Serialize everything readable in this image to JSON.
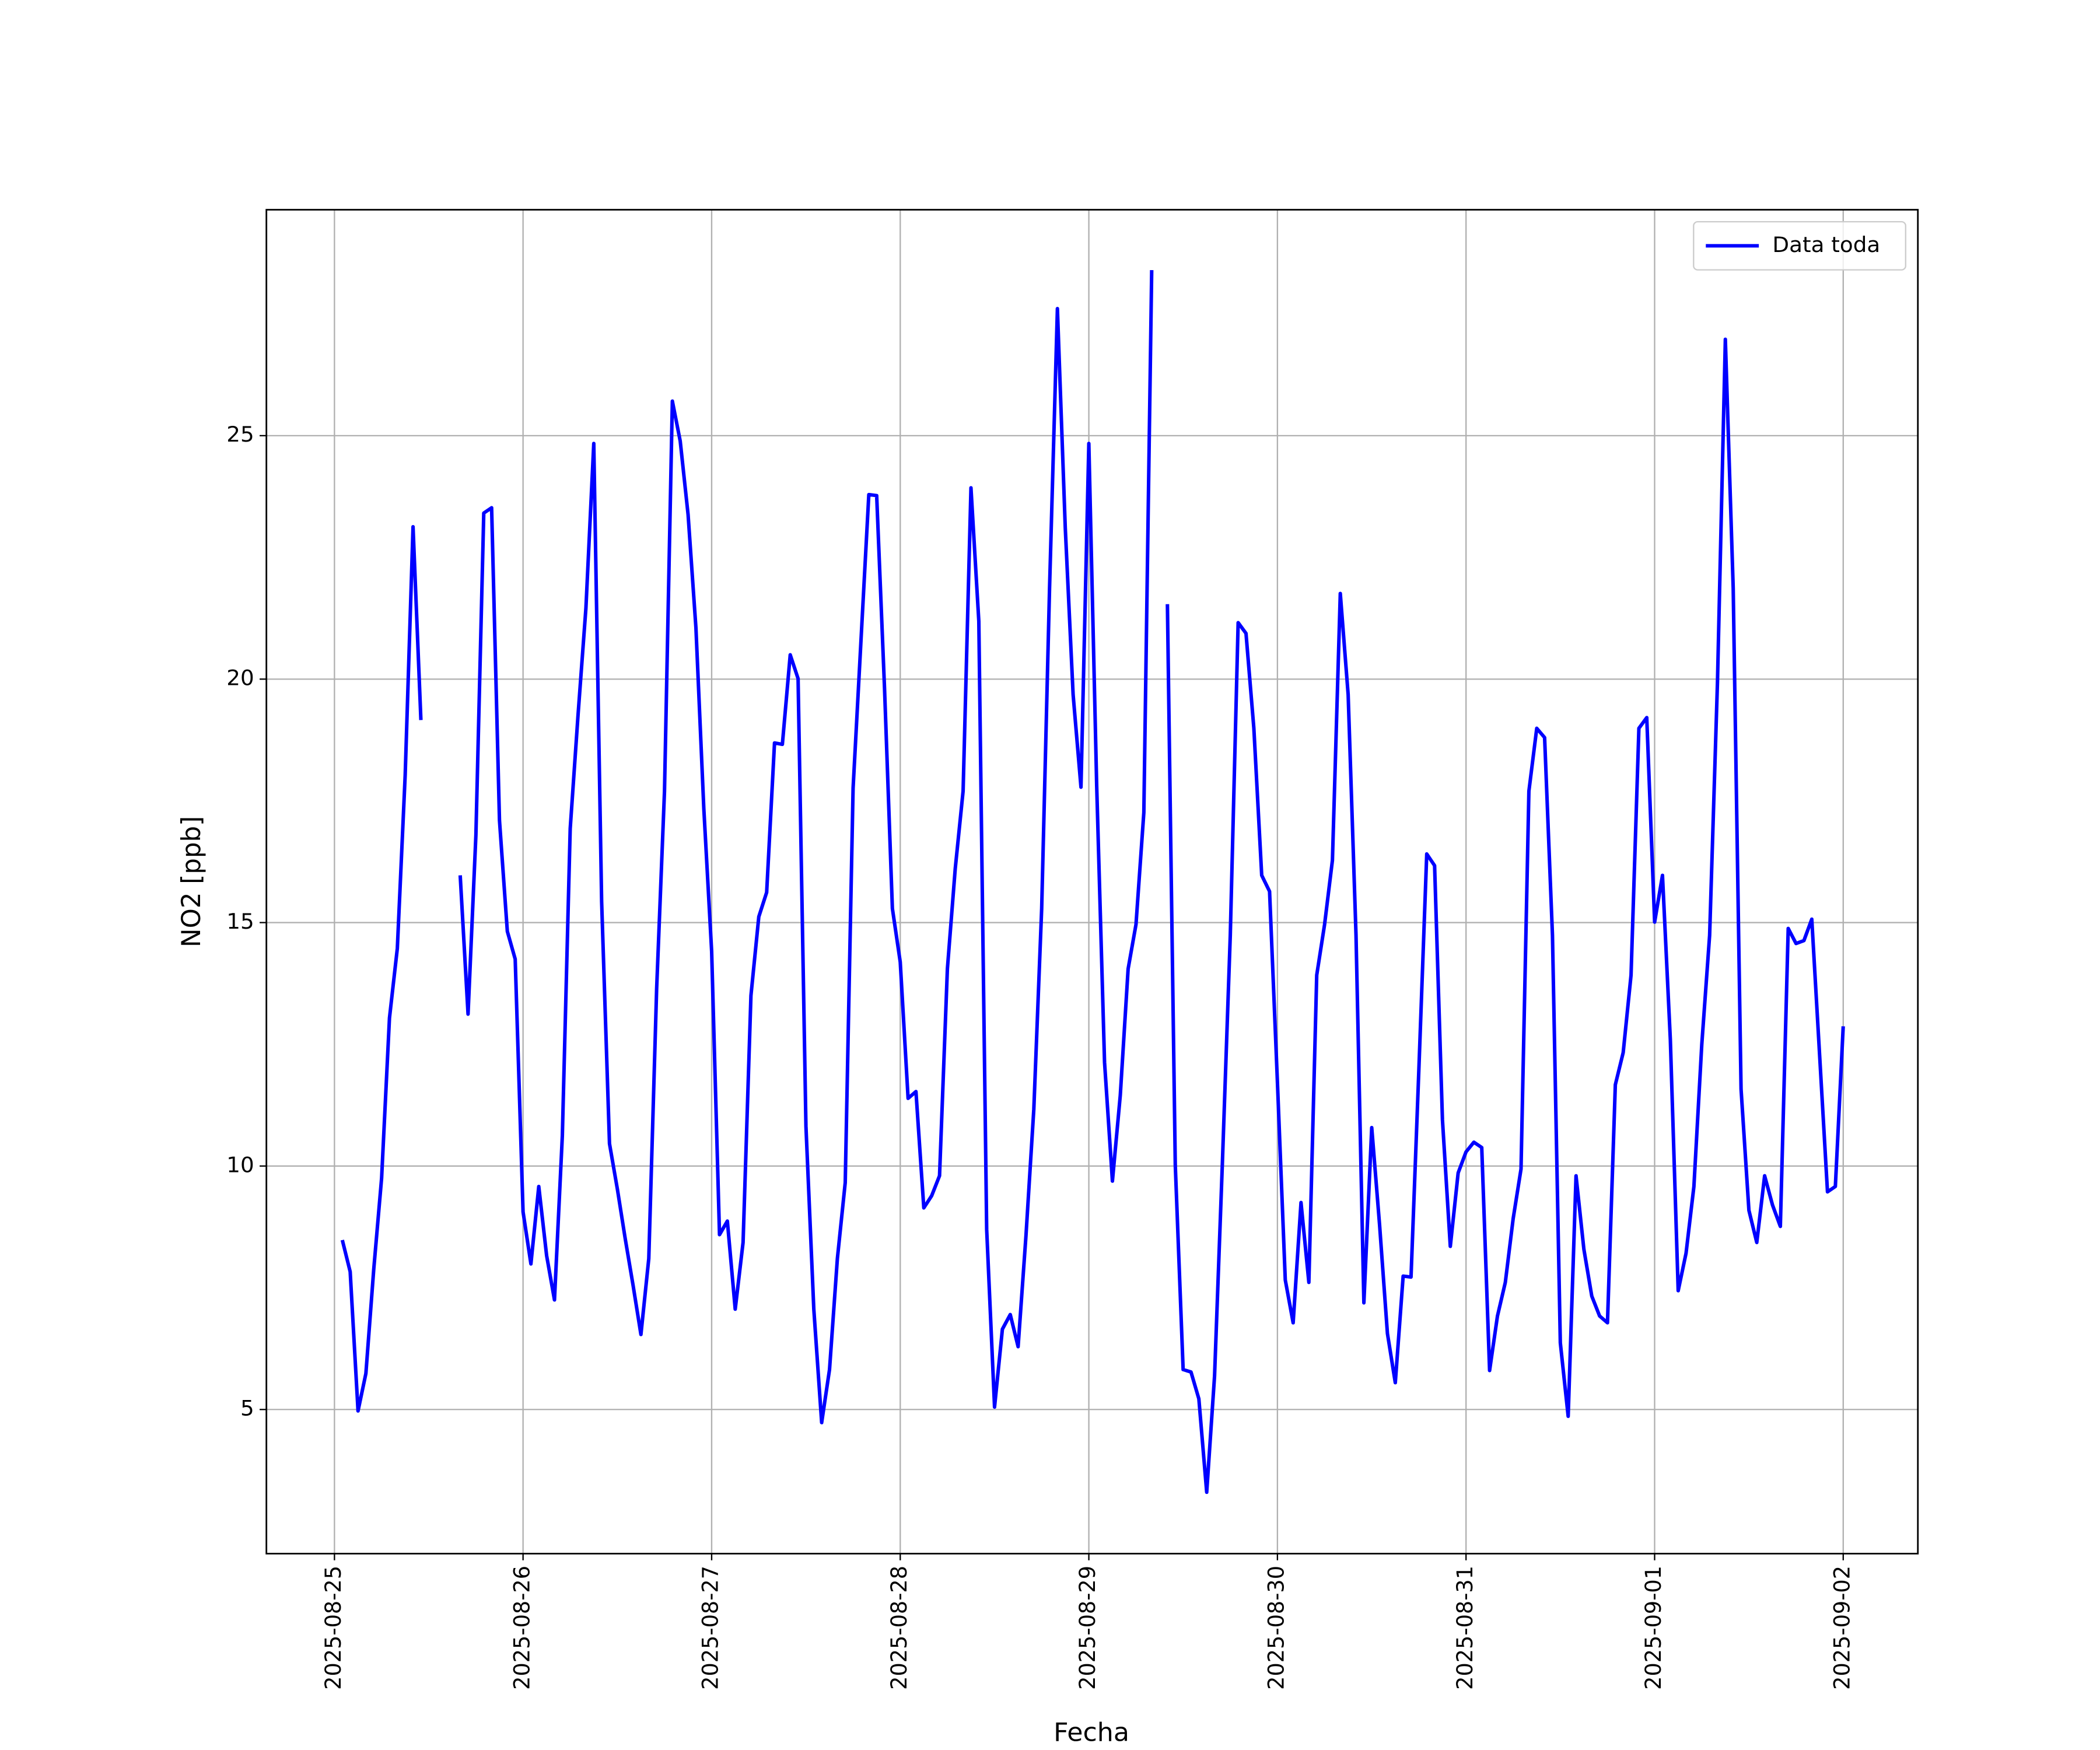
{
  "chart_data": {
    "type": "line",
    "xlabel": "Fecha",
    "ylabel": "NO2 [ppb]",
    "categories": [
      "2025-08-25",
      null,
      null,
      null,
      null,
      null,
      null,
      null,
      null,
      null,
      null,
      null,
      null,
      null,
      null,
      null,
      null,
      null,
      null,
      null,
      null,
      null,
      null,
      null,
      "2025-08-26",
      null,
      null,
      null,
      null,
      null,
      null,
      null,
      null,
      null,
      null,
      null,
      null,
      null,
      null,
      null,
      null,
      null,
      null,
      null,
      null,
      null,
      null,
      null,
      "2025-08-27",
      null,
      null,
      null,
      null,
      null,
      null,
      null,
      null,
      null,
      null,
      null,
      null,
      null,
      null,
      null,
      null,
      null,
      null,
      null,
      null,
      null,
      null,
      null,
      "2025-08-28",
      null,
      null,
      null,
      null,
      null,
      null,
      null,
      null,
      null,
      null,
      null,
      null,
      null,
      null,
      null,
      null,
      null,
      null,
      null,
      null,
      null,
      null,
      null,
      "2025-08-29",
      null,
      null,
      null,
      null,
      null,
      null,
      null,
      null,
      null,
      null,
      null,
      null,
      null,
      null,
      null,
      null,
      null,
      null,
      null,
      null,
      null,
      null,
      null,
      "2025-08-30",
      null,
      null,
      null,
      null,
      null,
      null,
      null,
      null,
      null,
      null,
      null,
      null,
      null,
      null,
      null,
      null,
      null,
      null,
      null,
      null,
      null,
      null,
      null,
      "2025-08-31",
      null,
      null,
      null,
      null,
      null,
      null,
      null,
      null,
      null,
      null,
      null,
      null,
      null,
      null,
      null,
      null,
      null,
      null,
      null,
      null,
      null,
      null,
      null,
      "2025-09-01",
      null,
      null,
      null,
      null,
      null,
      null,
      null,
      null,
      null,
      null,
      null,
      null,
      null,
      null,
      null,
      null,
      null,
      null,
      null,
      null,
      null,
      null,
      null,
      "2025-09-02"
    ],
    "series": [
      {
        "name": "Data toda",
        "color": "#0000ff",
        "values": [
          null,
          8.48,
          7.83,
          4.97,
          5.74,
          7.88,
          9.75,
          13.04,
          14.47,
          18.03,
          23.13,
          19.16,
          null,
          null,
          null,
          null,
          15.97,
          13.12,
          16.8,
          23.41,
          23.52,
          17.1,
          14.82,
          14.25,
          9.06,
          7.99,
          9.58,
          8.16,
          7.25,
          10.62,
          16.93,
          19.27,
          21.46,
          24.84,
          15.43,
          10.46,
          9.53,
          8.51,
          7.55,
          6.54,
          8.1,
          13.64,
          17.7,
          25.71,
          24.89,
          23.38,
          21.05,
          17.35,
          14.41,
          8.59,
          8.87,
          7.06,
          8.43,
          13.5,
          15.12,
          15.62,
          18.69,
          18.66,
          20.5,
          20.01,
          10.82,
          7.06,
          4.73,
          5.82,
          8.1,
          9.66,
          17.76,
          20.78,
          23.79,
          23.77,
          19.81,
          15.29,
          14.19,
          11.39,
          11.53,
          9.14,
          9.39,
          9.8,
          14.05,
          16.11,
          17.7,
          23.93,
          21.19,
          8.7,
          5.05,
          6.65,
          6.95,
          6.29,
          8.57,
          11.17,
          15.29,
          21.87,
          27.61,
          23.11,
          19.68,
          17.78,
          24.84,
          17.81,
          12.13,
          9.69,
          11.45,
          14.05,
          14.96,
          17.26,
          28.4,
          null,
          21.54,
          10.02,
          5.82,
          5.77,
          5.22,
          3.3,
          5.69,
          10.08,
          14.74,
          21.16,
          20.94,
          18.99,
          15.97,
          15.64,
          11.72,
          7.66,
          6.78,
          9.25,
          7.61,
          13.92,
          14.96,
          16.28,
          21.76,
          19.68,
          14.74,
          7.19,
          10.79,
          8.79,
          6.56,
          5.55,
          7.74,
          7.72,
          11.99,
          16.41,
          16.17,
          10.95,
          8.35,
          9.86,
          10.29,
          10.49,
          10.38,
          5.8,
          6.92,
          7.61,
          8.92,
          9.94,
          17.7,
          18.99,
          18.8,
          14.74,
          6.37,
          4.86,
          9.8,
          8.29,
          7.33,
          6.92,
          6.78,
          11.67,
          12.33,
          13.92,
          18.99,
          19.21,
          15.01,
          15.97,
          12.6,
          7.44,
          8.21,
          9.58,
          12.49,
          14.74,
          19.95,
          26.98,
          21.87,
          11.58,
          9.09,
          8.43,
          9.8,
          9.2,
          8.76,
          14.88,
          14.57,
          14.63,
          15.07,
          12.27,
          9.47,
          9.58,
          12.87
        ]
      }
    ],
    "ylim": [
      2.04,
      29.64
    ],
    "yticks": [
      5,
      10,
      15,
      20,
      25
    ],
    "grid": true,
    "legend": "upper right"
  }
}
